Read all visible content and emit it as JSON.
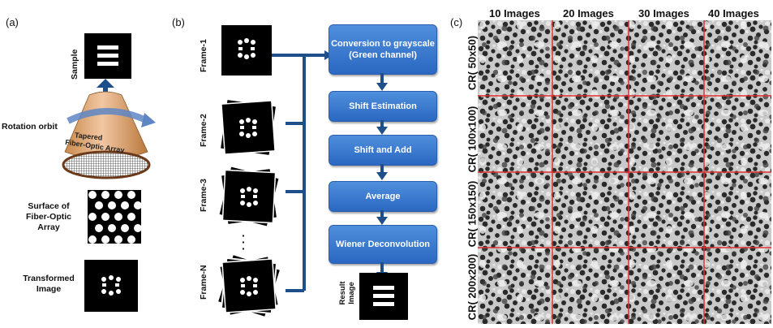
{
  "panel_a": {
    "label": "(a)",
    "sample_label": "Sample",
    "rotation_label": "Rotation orbit",
    "fiber_label_line1": "Tapered",
    "fiber_label_line2": "Fiber-Optic Array",
    "surface_label": "Surface of Fiber-Optic Array",
    "transformed_label": "Transformed Image"
  },
  "panel_b": {
    "label": "(b)",
    "frames": [
      "Frame-1",
      "Frame-2",
      "Frame-3",
      "Frame-N"
    ],
    "ellipsis": "·\n·\n·",
    "steps": [
      "Conversion to grayscale (Green channel)",
      "Shift Estimation",
      "Shift  and Add",
      "Average",
      "Wiener Deconvolution"
    ],
    "result_label": "Result Image"
  },
  "panel_c": {
    "label": "(c)",
    "columns": [
      "10 Images",
      "20 Images",
      "30 Images",
      "40 Images"
    ],
    "rows": [
      "CR( 50x50)",
      "CR( 100x100)",
      "CR( 150x150)",
      "CR( 200x200)"
    ]
  },
  "colors": {
    "box_blue": "#2f6fc8",
    "arrow_blue": "#1f4f8a",
    "grid_red": "#e03030"
  }
}
